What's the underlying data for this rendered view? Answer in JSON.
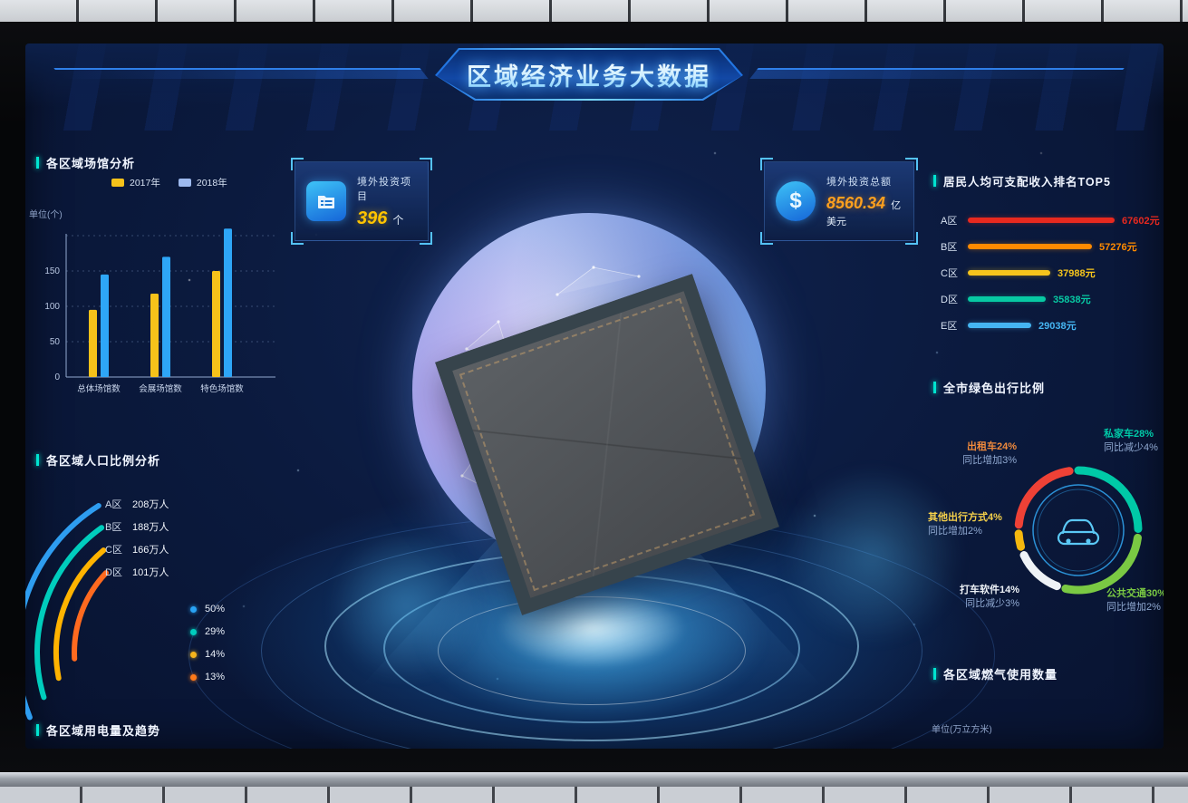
{
  "header": {
    "title": "区域经济业务大数据"
  },
  "stats": [
    {
      "label": "境外投资项目",
      "value": "396",
      "unit": "个",
      "icon": "folder-icon"
    },
    {
      "label": "境外投资总额",
      "value": "8560.34",
      "unit": "亿美元",
      "icon": "dollar-icon"
    }
  ],
  "sections": {
    "venues": {
      "title": "各区域场馆分析",
      "unit": "单位(个)"
    },
    "population": {
      "title": "各区域人口比例分析"
    },
    "power": {
      "title": "各区域用电量及趋势"
    },
    "income": {
      "title": "居民人均可支配收入排名TOP5"
    },
    "green": {
      "title": "全市绿色出行比例"
    },
    "gas": {
      "title": "各区域燃气使用数量",
      "unit": "单位(万立方米)"
    }
  },
  "chart_data": [
    {
      "id": "venues",
      "type": "bar",
      "title": "各区域场馆分析",
      "unit": "单位(个)",
      "categories": [
        "总体场馆数",
        "会展场馆数",
        "特色场馆数"
      ],
      "series": [
        {
          "name": "2017年",
          "color": "#f6c21a",
          "legend_color": "#f6c21a",
          "values": [
            95,
            118,
            150
          ]
        },
        {
          "name": "2018年",
          "color": "#2ea6f7",
          "legend_color": "#9db9ee",
          "values": [
            145,
            170,
            210
          ]
        }
      ],
      "ylim": [
        0,
        220
      ],
      "yticks": [
        0,
        50,
        100,
        150
      ],
      "grid_extra": [
        200
      ],
      "grid": "dashed"
    },
    {
      "id": "income",
      "type": "bar",
      "orientation": "horizontal",
      "title": "居民人均可支配收入排名TOP5",
      "unit": "元",
      "max": 67602,
      "rows": [
        {
          "area": "A区",
          "value": 67602,
          "text": "67602元",
          "color": "#e8291f"
        },
        {
          "area": "B区",
          "value": 57276,
          "text": "57276元",
          "color": "#ff8a00"
        },
        {
          "area": "C区",
          "value": 37988,
          "text": "37988元",
          "color": "#f6c51c"
        },
        {
          "area": "D区",
          "value": 35838,
          "text": "35838元",
          "color": "#07c9a3"
        },
        {
          "area": "E区",
          "value": 29038,
          "text": "29038元",
          "color": "#45b5f2"
        }
      ]
    },
    {
      "id": "green-travel",
      "type": "pie",
      "title": "全市绿色出行比例",
      "center_icon": "car-icon",
      "slices": [
        {
          "label": "私家车",
          "pct": 28,
          "text": "私家车28%",
          "yoy": "同比减少4%",
          "color": "#00c9a7"
        },
        {
          "label": "公共交通",
          "pct": 30,
          "text": "公共交通30%",
          "yoy": "同比增加2%",
          "color": "#7ac943"
        },
        {
          "label": "打车软件",
          "pct": 14,
          "text": "打车软件14%",
          "yoy": "同比减少3%",
          "color": "#eef2f7"
        },
        {
          "label": "其他出行方式",
          "pct": 4,
          "text": "其他出行方式4%",
          "yoy": "同比增加2%",
          "color": "#f5b80e"
        },
        {
          "label": "出租车",
          "pct": 24,
          "text": "出租车24%",
          "yoy": "同比增加3%",
          "color": "#ee4136"
        }
      ]
    },
    {
      "id": "population",
      "type": "arc",
      "title": "各区域人口比例分析",
      "rows": [
        {
          "area": "A区",
          "value": "208万人",
          "color": "#2e9df0"
        },
        {
          "area": "B区",
          "value": "188万人",
          "color": "#00cdbd"
        },
        {
          "area": "C区",
          "value": "166万人",
          "color": "#ffb300"
        },
        {
          "area": "D区",
          "value": "101万人",
          "color": "#ff6a1f"
        }
      ],
      "legend": [
        {
          "pct": "50%",
          "color": "#29a3f5"
        },
        {
          "pct": "29%",
          "color": "#00cdbd"
        },
        {
          "pct": "14%",
          "color": "#f6b51c"
        },
        {
          "pct": "13%",
          "color": "#ff7a1a"
        }
      ]
    }
  ]
}
